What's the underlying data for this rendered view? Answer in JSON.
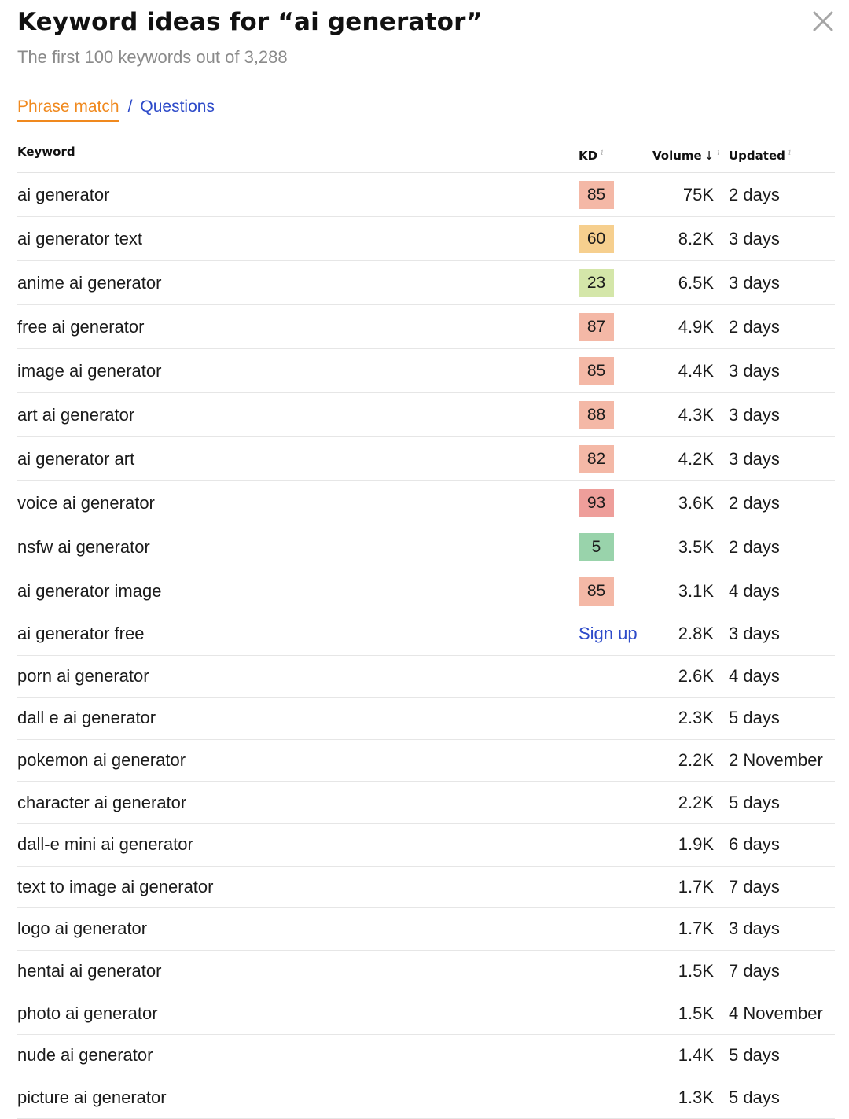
{
  "header": {
    "title": "Keyword ideas for “ai generator”",
    "subtitle": "The first 100 keywords out of 3,288"
  },
  "tabs": {
    "active": "Phrase match",
    "separator": "/",
    "other": "Questions"
  },
  "table": {
    "columns": {
      "keyword": "Keyword",
      "kd": "KD",
      "volume": "Volume",
      "volume_sort_icon": "arrow-down",
      "updated": "Updated",
      "info_mark": "i"
    },
    "kd_colors": {
      "very_hard": "#ee9e9a",
      "hard": "#f4b8a6",
      "medium": "#f6cf8e",
      "easy": "#d4e6a9",
      "very_easy": "#99d3ab"
    },
    "signup_label": "Sign up",
    "rows": [
      {
        "keyword": "ai generator",
        "kd": "85",
        "kd_level": "hard",
        "volume": "75K",
        "updated": "2 days"
      },
      {
        "keyword": "ai generator text",
        "kd": "60",
        "kd_level": "medium",
        "volume": "8.2K",
        "updated": "3 days"
      },
      {
        "keyword": "anime ai generator",
        "kd": "23",
        "kd_level": "easy",
        "volume": "6.5K",
        "updated": "3 days"
      },
      {
        "keyword": "free ai generator",
        "kd": "87",
        "kd_level": "hard",
        "volume": "4.9K",
        "updated": "2 days"
      },
      {
        "keyword": "image ai generator",
        "kd": "85",
        "kd_level": "hard",
        "volume": "4.4K",
        "updated": "3 days"
      },
      {
        "keyword": "art ai generator",
        "kd": "88",
        "kd_level": "hard",
        "volume": "4.3K",
        "updated": "3 days"
      },
      {
        "keyword": "ai generator art",
        "kd": "82",
        "kd_level": "hard",
        "volume": "4.2K",
        "updated": "3 days"
      },
      {
        "keyword": "voice ai generator",
        "kd": "93",
        "kd_level": "very_hard",
        "volume": "3.6K",
        "updated": "2 days"
      },
      {
        "keyword": "nsfw ai generator",
        "kd": "5",
        "kd_level": "very_easy",
        "volume": "3.5K",
        "updated": "2 days"
      },
      {
        "keyword": "ai generator image",
        "kd": "85",
        "kd_level": "hard",
        "volume": "3.1K",
        "updated": "4 days"
      },
      {
        "keyword": "ai generator free",
        "kd": null,
        "signup": true,
        "volume": "2.8K",
        "updated": "3 days"
      },
      {
        "keyword": "porn ai generator",
        "kd": null,
        "volume": "2.6K",
        "updated": "4 days"
      },
      {
        "keyword": "dall e ai generator",
        "kd": null,
        "volume": "2.3K",
        "updated": "5 days"
      },
      {
        "keyword": "pokemon ai generator",
        "kd": null,
        "volume": "2.2K",
        "updated": "2 November"
      },
      {
        "keyword": "character ai generator",
        "kd": null,
        "volume": "2.2K",
        "updated": "5 days"
      },
      {
        "keyword": "dall-e mini ai generator",
        "kd": null,
        "volume": "1.9K",
        "updated": "6 days"
      },
      {
        "keyword": "text to image ai generator",
        "kd": null,
        "volume": "1.7K",
        "updated": "7 days"
      },
      {
        "keyword": "logo ai generator",
        "kd": null,
        "volume": "1.7K",
        "updated": "3 days"
      },
      {
        "keyword": "hentai ai generator",
        "kd": null,
        "volume": "1.5K",
        "updated": "7 days"
      },
      {
        "keyword": "photo ai generator",
        "kd": null,
        "volume": "1.5K",
        "updated": "4 November"
      },
      {
        "keyword": "nude ai generator",
        "kd": null,
        "volume": "1.4K",
        "updated": "5 days"
      },
      {
        "keyword": "picture ai generator",
        "kd": null,
        "volume": "1.3K",
        "updated": "5 days"
      }
    ]
  }
}
